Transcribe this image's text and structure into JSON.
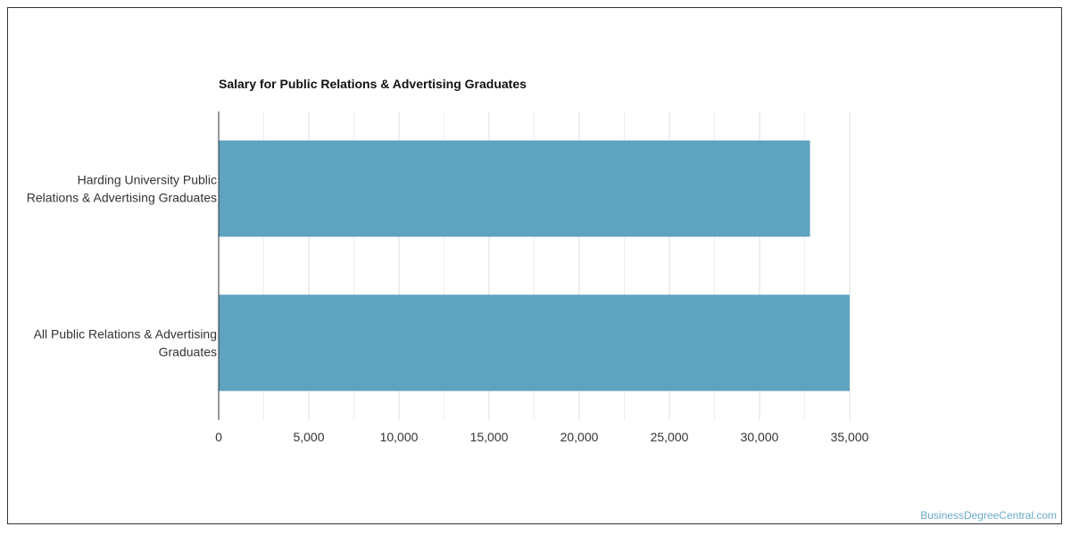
{
  "chart_data": {
    "type": "bar",
    "orientation": "horizontal",
    "title": "Salary for Public Relations & Advertising Graduates",
    "categories": [
      [
        "Harding University Public",
        "Relations & Advertising Graduates"
      ],
      [
        "All Public Relations & Advertising",
        "Graduates"
      ]
    ],
    "values": [
      32800,
      35000
    ],
    "xlim": [
      0,
      35000
    ],
    "xticks": [
      0,
      5000,
      10000,
      15000,
      20000,
      25000,
      30000,
      35000
    ],
    "xtick_labels": [
      "0",
      "5,000",
      "10,000",
      "15,000",
      "20,000",
      "25,000",
      "30,000",
      "35,000"
    ],
    "xlabel": "",
    "ylabel": "",
    "grid": true,
    "bar_color": "#5ea3bf",
    "grid_color": "#dddddd"
  },
  "footer": {
    "watermark": "BusinessDegreeCentral.com"
  }
}
